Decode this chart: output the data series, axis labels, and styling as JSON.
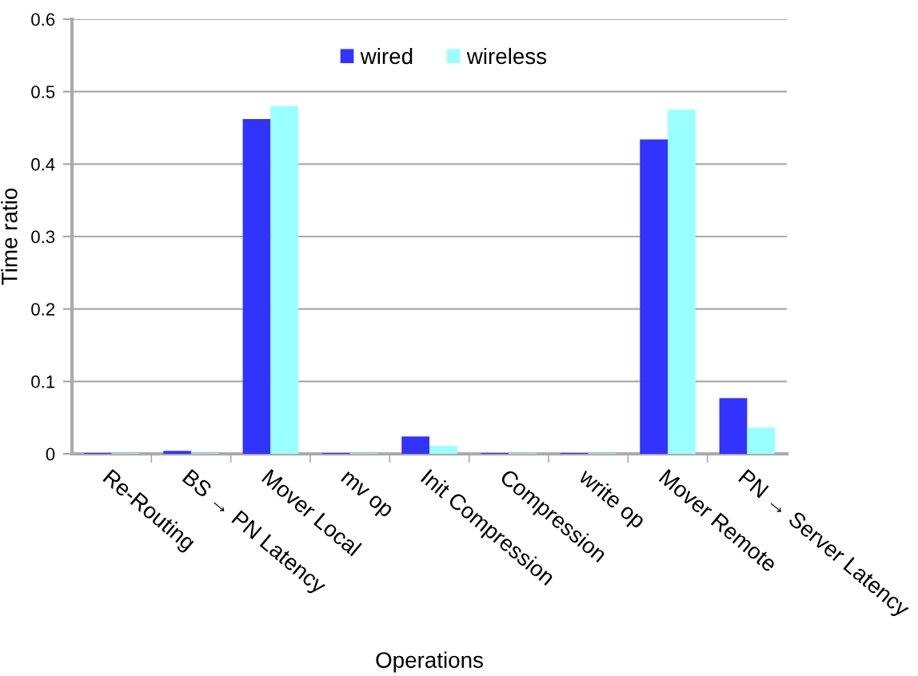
{
  "chart_data": {
    "type": "bar",
    "xlabel": "Operations",
    "ylabel": "Time ratio",
    "categories": [
      "Re-Routing",
      "BS → PN Latency",
      "Mover Local",
      "mv op",
      "Init Compression",
      "Compression",
      "write op",
      "Mover Remote",
      "PN → Server Latency"
    ],
    "series": [
      {
        "name": "wired",
        "color": "#3333ff",
        "values": [
          0.001,
          0.004,
          0.462,
          0.001,
          0.024,
          0.001,
          0.001,
          0.434,
          0.077
        ]
      },
      {
        "name": "wireless",
        "color": "#99ffff",
        "values": [
          0.001,
          0.001,
          0.48,
          0.001,
          0.011,
          0.001,
          0.001,
          0.475,
          0.036
        ]
      }
    ],
    "ylim": [
      0,
      0.6
    ],
    "yticks": [
      0,
      0.1,
      0.2,
      0.3,
      0.4,
      0.5,
      0.6
    ],
    "grid": "y",
    "legend": "top"
  }
}
